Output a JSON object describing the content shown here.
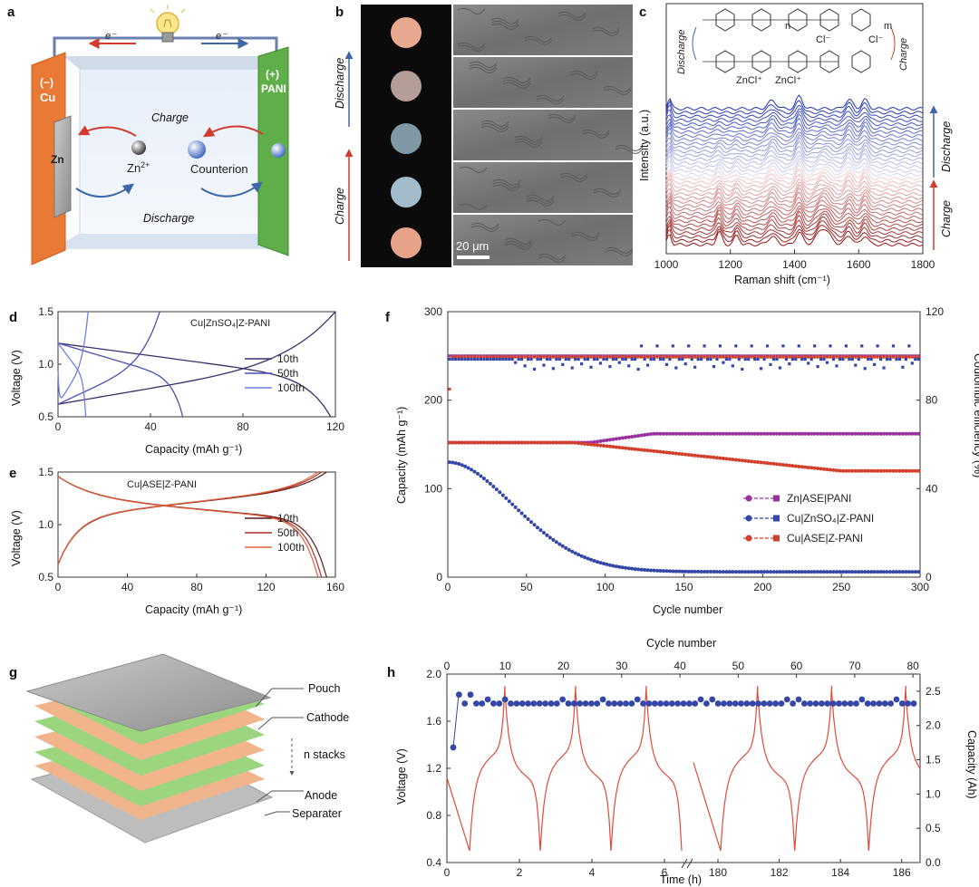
{
  "panels": {
    "a": {
      "label": "a",
      "electron_left": "e⁻",
      "electron_right": "e⁻",
      "neg_sign": "(−)",
      "neg_name": "Cu",
      "pos_sign": "(+)",
      "pos_name": "PANI",
      "zn": "Zn",
      "zn_ion": "Zn",
      "zn_ion_sup": "2+",
      "counterion": "Counterion",
      "charge": "Charge",
      "discharge": "Discharge",
      "colors": {
        "cu": "#e97a35",
        "pani": "#5fae4a",
        "charge": "#d23a2e",
        "discharge": "#3e67a8"
      }
    },
    "b": {
      "label": "b",
      "discharge": "Discharge",
      "charge": "Charge",
      "scale": "20 μm",
      "dot_colors": [
        "#e8a890",
        "#b59e98",
        "#7e98a6",
        "#a3bccb",
        "#e7a38a"
      ]
    },
    "c": {
      "label": "c",
      "discharge": "Discharge",
      "charge": "Charge",
      "cl1": "Cl⁻",
      "cl2": "Cl⁻",
      "zncl1": "ZnCl⁺",
      "zncl2": "ZnCl⁺",
      "sub_n": "n",
      "sub_m": "m"
    },
    "g": {
      "label": "g",
      "layers": {
        "pouch": "Pouch",
        "cathode": "Cathode",
        "stacks": "n stacks",
        "anode": "Anode",
        "separater": "Separater"
      }
    }
  },
  "chart_data": [
    {
      "id": "c",
      "type": "line",
      "xlabel": "Raman shift (cm⁻¹)",
      "ylabel": "Intensity (a.u.)",
      "xlim": [
        1000,
        1800
      ],
      "xticks": [
        "1000",
        "1200",
        "1400",
        "1600",
        "1800"
      ],
      "spectra_count": 36,
      "peaks_cm": [
        1010,
        1165,
        1220,
        1330,
        1415,
        1490,
        1570,
        1620
      ]
    },
    {
      "id": "d",
      "type": "line",
      "title": "Cu|ZnSO₄|Z-PANI",
      "xlabel": "Capacity (mAh g⁻¹)",
      "ylabel": "Voltage (V)",
      "xlim": [
        0,
        120
      ],
      "ylim": [
        0.5,
        1.5
      ],
      "xticks": [
        "0",
        "40",
        "80",
        "120"
      ],
      "yticks": [
        "0.5",
        "1.0",
        "1.5"
      ],
      "series": [
        {
          "name": "10th",
          "color": "#3a2f6e",
          "charge_end_capacity": 120,
          "discharge_end_capacity": 118
        },
        {
          "name": "50th",
          "color": "#4a4fb3",
          "charge_end_capacity": 44,
          "discharge_end_capacity": 54
        },
        {
          "name": "100th",
          "color": "#6d7fe0",
          "charge_end_capacity": 13,
          "discharge_end_capacity": 12
        }
      ]
    },
    {
      "id": "e",
      "type": "line",
      "title": "Cu|ASE|Z-PANI",
      "xlabel": "Capacity (mAh g⁻¹)",
      "ylabel": "Voltage (V)",
      "xlim": [
        0,
        160
      ],
      "ylim": [
        0.5,
        1.5
      ],
      "xticks": [
        "0",
        "40",
        "80",
        "120",
        "160"
      ],
      "yticks": [
        "0.5",
        "1.0",
        "1.5"
      ],
      "series": [
        {
          "name": "10th",
          "color": "#5a1a1a",
          "end_capacity": 155
        },
        {
          "name": "50th",
          "color": "#a8322a",
          "end_capacity": 152
        },
        {
          "name": "100th",
          "color": "#e2613a",
          "end_capacity": 150
        }
      ]
    },
    {
      "id": "f",
      "type": "scatter",
      "xlabel": "Cycle number",
      "ylabel": "Capacity (mAh g⁻¹)",
      "y2label": "Coulombic efficiency (%)",
      "xlim": [
        0,
        300
      ],
      "ylim": [
        0,
        300
      ],
      "y2lim": [
        0,
        120
      ],
      "xticks": [
        "0",
        "50",
        "100",
        "150",
        "200",
        "250",
        "300"
      ],
      "yticks": [
        "0",
        "100",
        "200",
        "300"
      ],
      "y2ticks": [
        "0",
        "40",
        "80",
        "120"
      ],
      "series": [
        {
          "name": "Zn|ASE|PANI",
          "color": "#9a2fa0",
          "capacity_start": 152,
          "capacity_end": 162,
          "ce": 100
        },
        {
          "name": "Cu|ZnSO₄|Z-PANI",
          "color": "#3446a6",
          "capacity_start": 130,
          "capacity_end": 6,
          "ce_range": [
            92,
            105
          ]
        },
        {
          "name": "Cu|ASE|Z-PANI",
          "color": "#d2402c",
          "capacity_start": 152,
          "capacity_end": 120,
          "ce": 99.5
        }
      ]
    },
    {
      "id": "h",
      "type": "line",
      "xlabel": "Time (h)",
      "x2label": "Cycle number",
      "ylabel": "Voltage (V)",
      "y2label": "Capacity (Ah)",
      "ylim": [
        0.4,
        2.0
      ],
      "y2lim": [
        0,
        2.75
      ],
      "xticks_left": [
        "0",
        "2",
        "4",
        "6"
      ],
      "xticks_right": [
        "180",
        "182",
        "184",
        "186"
      ],
      "x2ticks": [
        "0",
        "10",
        "20",
        "30",
        "40",
        "50",
        "60",
        "70",
        "80"
      ],
      "yticks": [
        "0.4",
        "0.8",
        "1.2",
        "1.6",
        "2.0"
      ],
      "y2ticks": [
        "0.0",
        "0.5",
        "1.0",
        "1.5",
        "2.0",
        "2.5"
      ],
      "series": [
        {
          "name": "Voltage",
          "color": "#e04a3a",
          "vmin": 0.5,
          "vmax": 1.9
        },
        {
          "name": "Capacity",
          "color": "#3446a6",
          "first": 1.68,
          "typical": 2.32
        }
      ]
    }
  ]
}
